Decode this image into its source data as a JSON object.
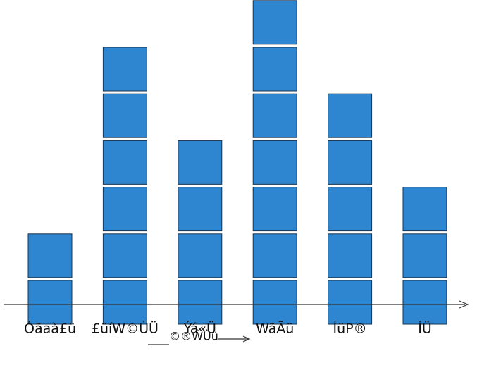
{
  "chart_data": {
    "type": "bar",
    "categories": [
      "Óãaà£ü",
      "£üíW©ÙÜ",
      "Ýá«Ü",
      "WãÃü",
      "ÍüP®",
      "ÍÜ"
    ],
    "values": [
      2,
      6,
      4,
      7,
      5,
      3
    ],
    "color": "#2f86d0",
    "x_label": "©®ŴÙü"
  }
}
